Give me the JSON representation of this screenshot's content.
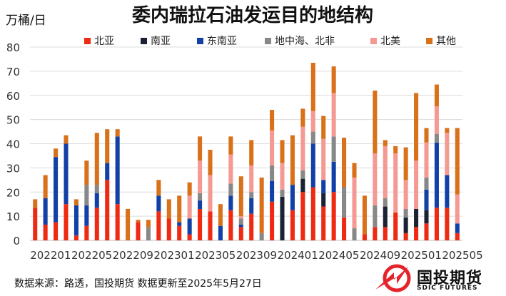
{
  "chart_data": {
    "type": "bar",
    "stacked": true,
    "title": "委内瑞拉石油发运目的地结构",
    "ylabel": "万桶/日",
    "xlabel": "",
    "ylim": [
      0,
      80
    ],
    "yticks": [
      0,
      10,
      20,
      30,
      40,
      50,
      60,
      70,
      80
    ],
    "xtick_labels": [
      "202201",
      "202205",
      "202209",
      "202301",
      "202305",
      "202309",
      "202401",
      "202405",
      "202409",
      "202501",
      "202505"
    ],
    "grid": true,
    "legend_position": "top",
    "series": [
      {
        "name": "北亚",
        "color": "#ee2a12",
        "values": [
          13.5,
          6.5,
          7.5,
          15,
          2,
          6,
          13.5,
          25,
          15,
          0,
          7.5,
          0,
          12,
          9,
          6,
          2.5,
          13,
          12,
          0,
          12.5,
          5.5,
          11,
          0,
          16,
          0,
          12.5,
          20,
          22,
          14,
          20,
          9.5,
          0,
          2.5,
          5.5,
          5.5,
          11.5,
          3,
          5.5,
          7,
          13.5,
          13.5,
          3
        ]
      },
      {
        "name": "南亚",
        "color": "#1b2233",
        "values": [
          0,
          0,
          0,
          0,
          0,
          0,
          0,
          0,
          0,
          0,
          0,
          0,
          0,
          0,
          0,
          0,
          0,
          0,
          0,
          0,
          0,
          0,
          0,
          0,
          18,
          0,
          5.5,
          0,
          5.5,
          0,
          0,
          0,
          0,
          0,
          8.5,
          0,
          6.5,
          7.5,
          5.5,
          0,
          0,
          0
        ]
      },
      {
        "name": "东南亚",
        "color": "#1240a6",
        "values": [
          0,
          11,
          27,
          25,
          12.5,
          8.5,
          6,
          7,
          28,
          0,
          0,
          0,
          6.5,
          0,
          1.5,
          6.5,
          3.5,
          0,
          6,
          6,
          1,
          6.5,
          0,
          8.5,
          0,
          10.5,
          0,
          18,
          5.5,
          12.5,
          0,
          0,
          0,
          0,
          0,
          0,
          0,
          0,
          8.5,
          27,
          13.5,
          4
        ]
      },
      {
        "name": "地中海、北非",
        "color": "#888888",
        "values": [
          0,
          0,
          0,
          0,
          0,
          8.5,
          3.5,
          0,
          0,
          0,
          0,
          5.5,
          0,
          0,
          0,
          0,
          3,
          0,
          0,
          5,
          2.5,
          2.5,
          3,
          6.5,
          3,
          0,
          3.5,
          5,
          0,
          10.5,
          12.5,
          5,
          0,
          9,
          3.5,
          0,
          3.5,
          0,
          5,
          3.5,
          0,
          0
        ]
      },
      {
        "name": "北美",
        "color": "#f49a93",
        "values": [
          0,
          0,
          0,
          0,
          0,
          0,
          0,
          0,
          0,
          0,
          0,
          0,
          0,
          0,
          0,
          9.5,
          13.5,
          15,
          0,
          12,
          1,
          11,
          0,
          14.5,
          11,
          0,
          18,
          8.5,
          17,
          18,
          0,
          21,
          0,
          21.5,
          21.5,
          24.5,
          12,
          20,
          14.5,
          11.5,
          17.5,
          12
        ]
      },
      {
        "name": "其他",
        "color": "#d9701a",
        "values": [
          3.5,
          9.5,
          3.5,
          3.5,
          2.5,
          10,
          21.5,
          14,
          3,
          13,
          1,
          3,
          6.5,
          8,
          11,
          5.5,
          10,
          10.5,
          9,
          7.5,
          16.5,
          10.5,
          23,
          8.5,
          9.5,
          20.5,
          7.5,
          20,
          9.5,
          11,
          20.5,
          6,
          16,
          26,
          2.5,
          3,
          13.5,
          28,
          6,
          9,
          2,
          27.5
        ]
      }
    ]
  },
  "footer": {
    "source_text": "数据来源：路透，国投期货  数据更新至2025年5月27日"
  },
  "logo": {
    "name_cn": "国投期货",
    "name_en": "SDIC FUTURES"
  }
}
